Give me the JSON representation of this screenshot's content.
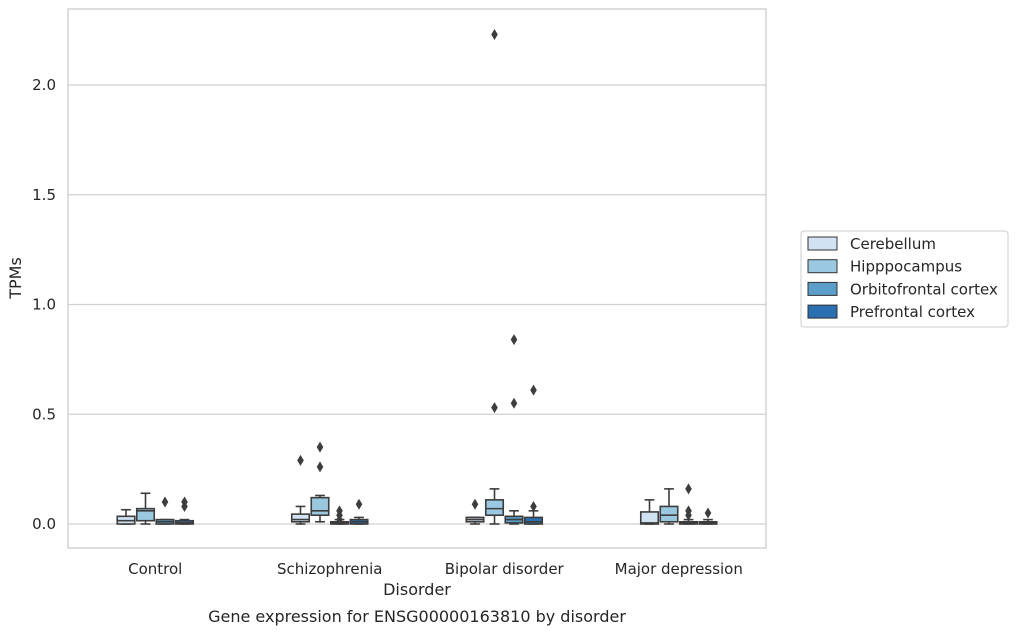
{
  "chart_data": {
    "type": "box",
    "xlabel": "Disorder",
    "ylabel": "TPMs",
    "caption": "Gene expression for ENSG00000163810 by disorder",
    "ylim": [
      -0.11,
      2.36
    ],
    "yticks": [
      0.0,
      0.5,
      1.0,
      1.5,
      2.0
    ],
    "ytick_labels": [
      "0.0",
      "0.5",
      "1.0",
      "1.5",
      "2.0"
    ],
    "grid": "horizontal",
    "legend_position": "right",
    "categories": [
      "Control",
      "Schizophrenia",
      "Bipolar disorder",
      "Major depression"
    ],
    "series": [
      {
        "name": "Cerebellum",
        "color": "#d1e2f2",
        "boxes": [
          {
            "whislo": 0.0,
            "q1": 0.0,
            "med": 0.015,
            "q3": 0.035,
            "whishi": 0.065,
            "fliers": []
          },
          {
            "whislo": 0.0,
            "q1": 0.01,
            "med": 0.02,
            "q3": 0.045,
            "whishi": 0.08,
            "fliers": [
              0.29
            ]
          },
          {
            "whislo": 0.0,
            "q1": 0.01,
            "med": 0.02,
            "q3": 0.03,
            "whishi": 0.03,
            "fliers": [
              0.09
            ]
          },
          {
            "whislo": 0.0,
            "q1": 0.0,
            "med": 0.005,
            "q3": 0.055,
            "whishi": 0.11,
            "fliers": []
          }
        ]
      },
      {
        "name": "Hipppocampus",
        "color": "#9ac8e0",
        "boxes": [
          {
            "whislo": 0.0,
            "q1": 0.015,
            "med": 0.06,
            "q3": 0.07,
            "whishi": 0.14,
            "fliers": []
          },
          {
            "whislo": 0.01,
            "q1": 0.04,
            "med": 0.06,
            "q3": 0.12,
            "whishi": 0.13,
            "fliers": [
              0.26,
              0.35
            ]
          },
          {
            "whislo": 0.0,
            "q1": 0.04,
            "med": 0.07,
            "q3": 0.11,
            "whishi": 0.16,
            "fliers": [
              0.53,
              2.23
            ]
          },
          {
            "whislo": 0.0,
            "q1": 0.01,
            "med": 0.04,
            "q3": 0.08,
            "whishi": 0.16,
            "fliers": []
          }
        ]
      },
      {
        "name": "Orbitofrontal cortex",
        "color": "#5a9ec9",
        "boxes": [
          {
            "whislo": 0.0,
            "q1": 0.0,
            "med": 0.01,
            "q3": 0.02,
            "whishi": 0.02,
            "fliers": [
              0.1
            ]
          },
          {
            "whislo": 0.0,
            "q1": 0.0,
            "med": 0.005,
            "q3": 0.01,
            "whishi": 0.02,
            "fliers": [
              0.02,
              0.04,
              0.06
            ]
          },
          {
            "whislo": 0.0,
            "q1": 0.005,
            "med": 0.02,
            "q3": 0.035,
            "whishi": 0.06,
            "fliers": [
              0.55,
              0.84
            ]
          },
          {
            "whislo": 0.0,
            "q1": 0.0,
            "med": 0.005,
            "q3": 0.01,
            "whishi": 0.02,
            "fliers": [
              0.04,
              0.06,
              0.16
            ]
          }
        ]
      },
      {
        "name": "Prefrontal cortex",
        "color": "#2a6fb0",
        "boxes": [
          {
            "whislo": 0.0,
            "q1": 0.0,
            "med": 0.005,
            "q3": 0.015,
            "whishi": 0.02,
            "fliers": [
              0.08,
              0.1
            ]
          },
          {
            "whislo": 0.0,
            "q1": 0.0,
            "med": 0.01,
            "q3": 0.02,
            "whishi": 0.03,
            "fliers": [
              0.09
            ]
          },
          {
            "whislo": 0.0,
            "q1": 0.0,
            "med": 0.01,
            "q3": 0.03,
            "whishi": 0.06,
            "fliers": [
              0.08,
              0.61
            ]
          },
          {
            "whislo": 0.0,
            "q1": 0.0,
            "med": 0.005,
            "q3": 0.01,
            "whishi": 0.02,
            "fliers": [
              0.05
            ]
          }
        ]
      }
    ]
  }
}
